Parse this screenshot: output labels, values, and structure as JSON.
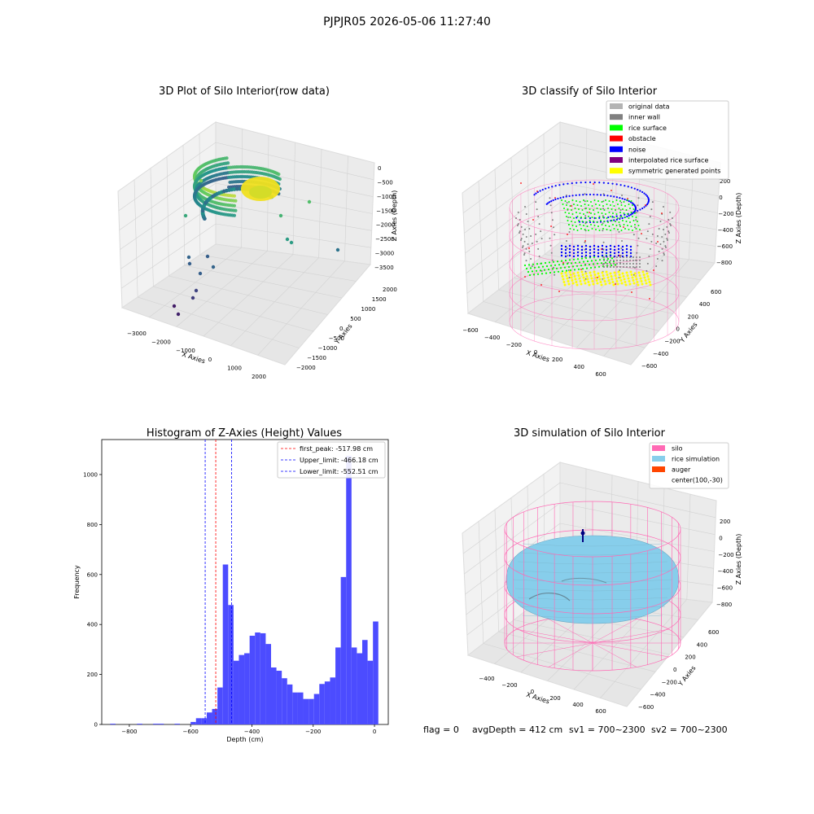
{
  "suptitle": "PJPJR05 2026-05-06 11:27:40",
  "footer": {
    "flag": "flag = 0",
    "avg_depth": "avgDepth = 412 cm",
    "sv1": "sv1 = 700~2300",
    "sv2": "sv2 = 700~2300"
  },
  "colors": {
    "hist_bar": "#4c4cff",
    "first_peak": "#ff0000",
    "limits": "#0000ff",
    "silo": "#ff69b4",
    "rice_simulation": "#87ceeb",
    "auger": "#ff4500",
    "original": "#b3b3b3",
    "inner_wall": "#808080",
    "rice_surface": "#00ff00",
    "obstacle": "#ff0000",
    "noise": "#0000ff",
    "interpolated": "#800080",
    "symmetric": "#ffff00"
  },
  "panels": {
    "raw": {
      "title": "3D Plot of Silo Interior(row data)",
      "xlabel": "X Axies",
      "ylabel": "Y Axies",
      "zlabel": "Z Axies (Depth)",
      "xticks": [
        "-3000",
        "-2000",
        "-1000",
        "0",
        "1000",
        "2000"
      ],
      "yticks": [
        "2000",
        "1500",
        "1000",
        "500",
        "0",
        "-500",
        "-1000",
        "-1500",
        "-2000"
      ],
      "zticks": [
        "0",
        "-500",
        "-1000",
        "-1500",
        "-2000",
        "-2500",
        "-3000",
        "-3500"
      ]
    },
    "classify": {
      "title": "3D classify of Silo Interior",
      "xlabel": "X Axies",
      "ylabel": "Y Axies",
      "zlabel": "Z Axies (Depth)",
      "xticks": [
        "-600",
        "-400",
        "-200",
        "0",
        "200",
        "400",
        "600"
      ],
      "yticks": [
        "600",
        "400",
        "200",
        "0",
        "-200",
        "-400",
        "-600"
      ],
      "zticks": [
        "200",
        "0",
        "-200",
        "-400",
        "-600",
        "-800"
      ],
      "legend": [
        {
          "label": "original data",
          "color": "#b3b3b3"
        },
        {
          "label": "inner wall",
          "color": "#808080"
        },
        {
          "label": "rice surface",
          "color": "#00ff00"
        },
        {
          "label": "obstacle",
          "color": "#ff0000"
        },
        {
          "label": "noise",
          "color": "#0000ff"
        },
        {
          "label": "interpolated rice surface",
          "color": "#800080"
        },
        {
          "label": "symmetric generated points",
          "color": "#ffff00"
        }
      ]
    },
    "simulation": {
      "title": "3D simulation of Silo Interior",
      "xlabel": "X Axies",
      "ylabel": "Y Axies",
      "zlabel": "Z Axies (Depth)",
      "xticks": [
        "-400",
        "-200",
        "0",
        "200",
        "400",
        "600"
      ],
      "yticks": [
        "600",
        "400",
        "200",
        "0",
        "-200",
        "-400",
        "-600"
      ],
      "zticks": [
        "200",
        "0",
        "-200",
        "-400",
        "-600",
        "-800"
      ],
      "legend": [
        {
          "label": "silo",
          "color": "#ff69b4"
        },
        {
          "label": "rice simulation",
          "color": "#87ceeb"
        },
        {
          "label": "auger",
          "color": "#ff4500"
        },
        {
          "label": "center(100,-30)",
          "color": "#ffffff"
        }
      ]
    }
  },
  "chart_data": {
    "type": "bar",
    "title": "Histogram of Z-Axies (Height) Values",
    "xlabel": "Depth (cm)",
    "ylabel": "Frequency",
    "xlim": [
      -890,
      45
    ],
    "ylim": [
      0,
      1140
    ],
    "xticks": [
      -800,
      -600,
      -400,
      -200,
      0
    ],
    "yticks": [
      0,
      200,
      400,
      600,
      800,
      1000
    ],
    "bin_width": 17.5,
    "bin_starts": [
      -862.5,
      -845,
      -827.5,
      -810,
      -792.5,
      -775,
      -757.5,
      -740,
      -722.5,
      -705,
      -687.5,
      -670,
      -652.5,
      -635,
      -617.5,
      -600,
      -582.5,
      -565,
      -547.5,
      -530,
      -512.5,
      -495,
      -477.5,
      -460,
      -442.5,
      -425,
      -407.5,
      -390,
      -372.5,
      -355,
      -337.5,
      -320,
      -302.5,
      -285,
      -267.5,
      -250,
      -232.5,
      -215,
      -197.5,
      -180,
      -162.5,
      -145,
      -127.5,
      -110,
      -92.5,
      -75,
      -57.5,
      -40,
      -22.5,
      -5
    ],
    "counts": [
      3,
      0,
      0,
      0,
      0,
      3,
      0,
      0,
      3,
      3,
      0,
      0,
      3,
      0,
      0,
      10,
      25,
      25,
      48,
      62,
      148,
      640,
      478,
      255,
      278,
      285,
      355,
      368,
      365,
      322,
      228,
      215,
      185,
      160,
      128,
      128,
      102,
      102,
      122,
      162,
      172,
      188,
      308,
      590,
      1075,
      308,
      285,
      338,
      255,
      412
    ],
    "annotations": [
      {
        "label": "first_peak: -517.98 cm",
        "value": -517.98,
        "color": "#ff0000"
      },
      {
        "label": "Upper_limit: -466.18 cm",
        "value": -466.18,
        "color": "#0000ff"
      },
      {
        "label": "Lower_limit: -552.51 cm",
        "value": -552.51,
        "color": "#0000ff"
      }
    ],
    "legend_position": "top-right"
  }
}
